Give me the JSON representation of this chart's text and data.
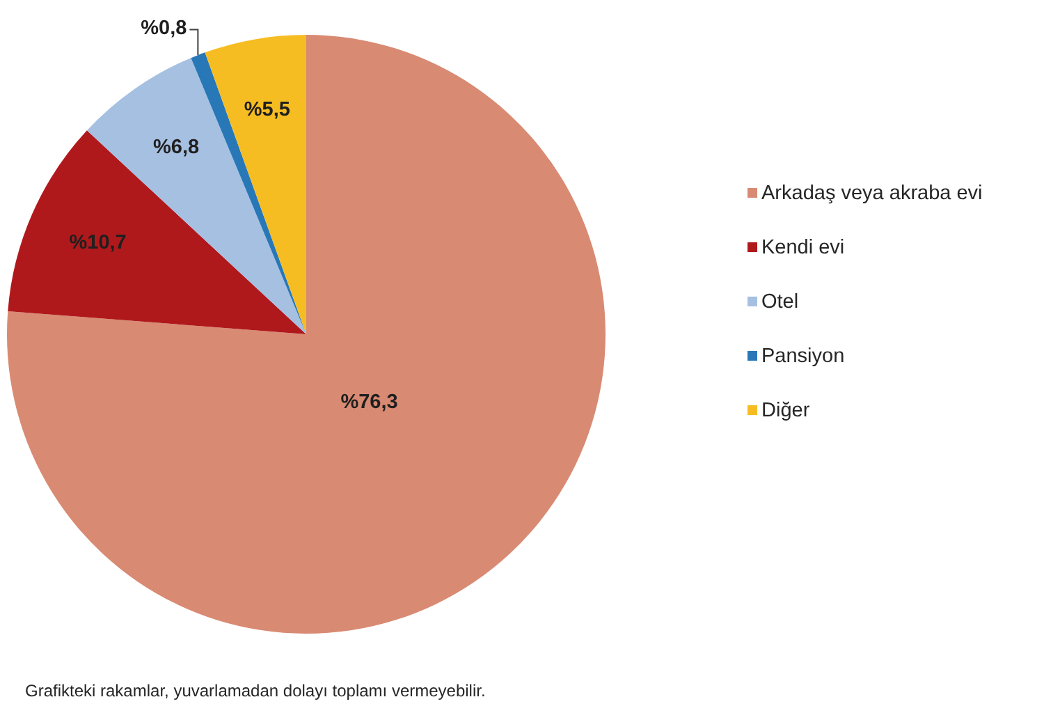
{
  "chart_data": {
    "type": "pie",
    "categories": [
      "Arkadaş veya akraba evi",
      "Kendi evi",
      "Otel",
      "Pansiyon",
      "Diğer"
    ],
    "values": [
      76.3,
      10.7,
      6.8,
      0.8,
      5.5
    ],
    "colors": [
      "#d98a73",
      "#b0191c",
      "#a6c0e2",
      "#2878b8",
      "#f6bd23"
    ],
    "value_labels": [
      "%76,3",
      "%10,7",
      "%6,8",
      "%0,8",
      "%5,5"
    ],
    "legend": "right",
    "annotations": [
      "Grafikteki rakamlar, yuvarlamadan dolayı toplamı vermeyebilir."
    ]
  }
}
